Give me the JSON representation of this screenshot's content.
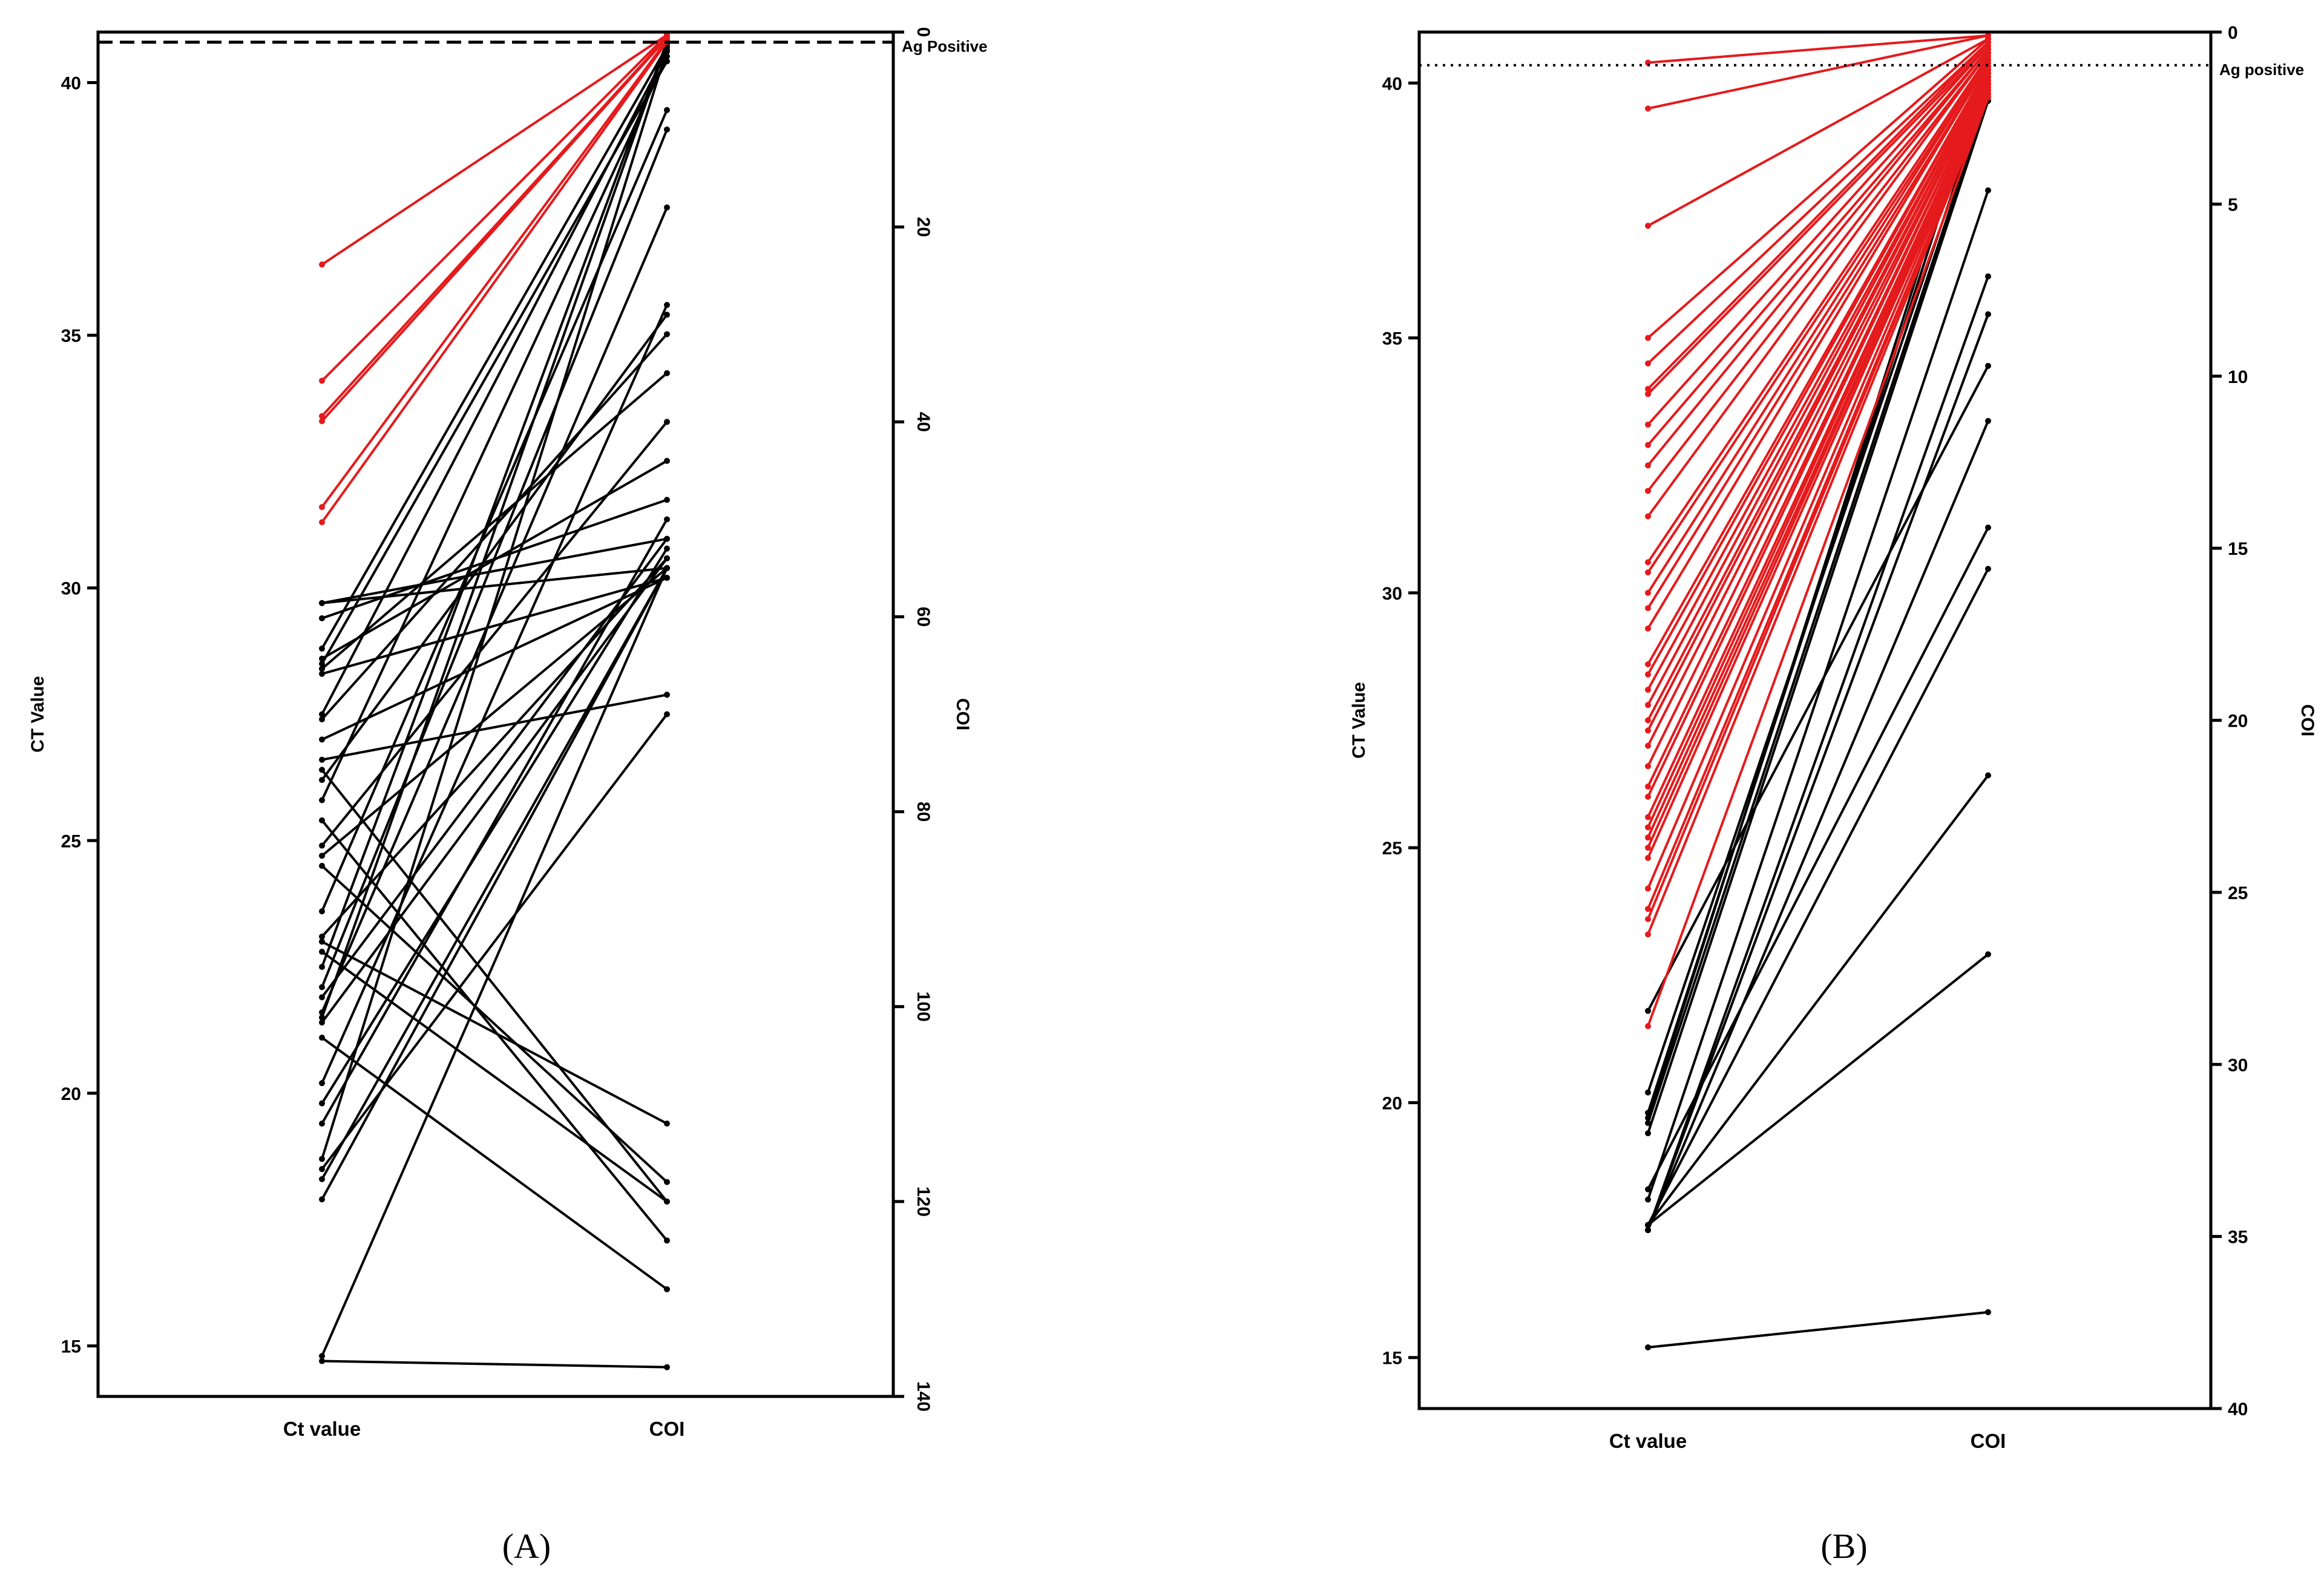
{
  "chart_data": [
    {
      "type": "slope",
      "panel_label": "(A)",
      "categories": [
        "Ct value",
        "COI"
      ],
      "left_axis": {
        "title": "CT Value",
        "ylim": [
          14,
          41
        ],
        "ticks": [
          15,
          20,
          25,
          30,
          35,
          40
        ]
      },
      "right_axis": {
        "title": "COI",
        "ylim": [
          0,
          140
        ],
        "reversed": true,
        "ticks": [
          0,
          20,
          40,
          60,
          80,
          100,
          120,
          140
        ]
      },
      "reference_line": {
        "label": "Ag Positive",
        "ct_value": 40.8,
        "style": "dashed"
      },
      "colors": {
        "antigen_negative": "#000000",
        "antigen_positive": "#e41a1c"
      },
      "pairs": [
        {
          "ct": 36.4,
          "coi": 0.3,
          "red": true
        },
        {
          "ct": 34.1,
          "coi": 0.3,
          "red": true
        },
        {
          "ct": 33.4,
          "coi": 0.5,
          "red": true
        },
        {
          "ct": 33.3,
          "coi": 0.6,
          "red": true
        },
        {
          "ct": 31.6,
          "coi": 0.8,
          "red": true
        },
        {
          "ct": 31.3,
          "coi": 1.0,
          "red": true
        },
        {
          "ct": 29.7,
          "coi": 52
        },
        {
          "ct": 29.7,
          "coi": 55
        },
        {
          "ct": 29.4,
          "coi": 48
        },
        {
          "ct": 28.8,
          "coi": 1.5
        },
        {
          "ct": 28.6,
          "coi": 44
        },
        {
          "ct": 28.5,
          "coi": 3
        },
        {
          "ct": 28.4,
          "coi": 35
        },
        {
          "ct": 28.3,
          "coi": 56
        },
        {
          "ct": 27.5,
          "coi": 2
        },
        {
          "ct": 27.4,
          "coi": 31
        },
        {
          "ct": 27.0,
          "coi": 56
        },
        {
          "ct": 26.6,
          "coi": 68
        },
        {
          "ct": 26.4,
          "coi": 120
        },
        {
          "ct": 26.2,
          "coi": 29
        },
        {
          "ct": 25.8,
          "coi": 2.5
        },
        {
          "ct": 25.4,
          "coi": 124
        },
        {
          "ct": 24.9,
          "coi": 40
        },
        {
          "ct": 24.7,
          "coi": 55
        },
        {
          "ct": 24.5,
          "coi": 118
        },
        {
          "ct": 23.6,
          "coi": 8
        },
        {
          "ct": 23.1,
          "coi": 54
        },
        {
          "ct": 23.0,
          "coi": 112
        },
        {
          "ct": 22.8,
          "coi": 120
        },
        {
          "ct": 22.5,
          "coi": 1
        },
        {
          "ct": 22.1,
          "coi": 10
        },
        {
          "ct": 21.9,
          "coi": 52
        },
        {
          "ct": 21.6,
          "coi": 18
        },
        {
          "ct": 21.5,
          "coi": 1.2
        },
        {
          "ct": 21.4,
          "coi": 54
        },
        {
          "ct": 21.1,
          "coi": 129
        },
        {
          "ct": 20.2,
          "coi": 28
        },
        {
          "ct": 19.8,
          "coi": 53
        },
        {
          "ct": 19.4,
          "coi": 50
        },
        {
          "ct": 18.7,
          "coi": 1.8
        },
        {
          "ct": 18.5,
          "coi": 70
        },
        {
          "ct": 18.3,
          "coi": 55
        },
        {
          "ct": 17.9,
          "coi": 55
        },
        {
          "ct": 14.8,
          "coi": 55
        },
        {
          "ct": 14.7,
          "coi": 137
        }
      ]
    },
    {
      "type": "slope",
      "panel_label": "(B)",
      "categories": [
        "Ct value",
        "COI"
      ],
      "left_axis": {
        "title": "CT Value",
        "ylim": [
          14,
          41
        ],
        "ticks": [
          15,
          20,
          25,
          30,
          35,
          40
        ]
      },
      "right_axis": {
        "title": "COI",
        "ylim": [
          0,
          40
        ],
        "reversed": true,
        "ticks": [
          0,
          5,
          10,
          15,
          20,
          25,
          30,
          35,
          40
        ]
      },
      "reference_line": {
        "label": "Ag positive",
        "ct_value": 40.35,
        "style": "dotted"
      },
      "colors": {
        "antigen_negative": "#000000",
        "antigen_positive": "#e41a1c"
      },
      "pairs": [
        {
          "ct": 40.4,
          "coi": 0.1,
          "red": true
        },
        {
          "ct": 39.5,
          "coi": 0.1,
          "red": true
        },
        {
          "ct": 37.2,
          "coi": 0.2,
          "red": true
        },
        {
          "ct": 35.0,
          "coi": 0.2,
          "red": true
        },
        {
          "ct": 34.5,
          "coi": 0.3,
          "red": true
        },
        {
          "ct": 34.0,
          "coi": 0.3,
          "red": true
        },
        {
          "ct": 33.9,
          "coi": 0.4,
          "red": true
        },
        {
          "ct": 33.3,
          "coi": 0.4,
          "red": true
        },
        {
          "ct": 32.9,
          "coi": 0.5,
          "red": true
        },
        {
          "ct": 32.5,
          "coi": 0.5,
          "red": true
        },
        {
          "ct": 32.0,
          "coi": 0.6,
          "red": true
        },
        {
          "ct": 31.5,
          "coi": 0.6,
          "red": true
        },
        {
          "ct": 30.6,
          "coi": 0.7,
          "red": true
        },
        {
          "ct": 30.4,
          "coi": 0.8,
          "red": true
        },
        {
          "ct": 30.0,
          "coi": 0.8,
          "red": true
        },
        {
          "ct": 29.7,
          "coi": 0.9,
          "red": true
        },
        {
          "ct": 29.3,
          "coi": 0.9,
          "red": true
        },
        {
          "ct": 28.6,
          "coi": 1.0,
          "red": true
        },
        {
          "ct": 28.4,
          "coi": 1.0,
          "red": true
        },
        {
          "ct": 28.1,
          "coi": 1.1,
          "red": true
        },
        {
          "ct": 27.8,
          "coi": 1.1,
          "red": true
        },
        {
          "ct": 27.5,
          "coi": 1.2,
          "red": true
        },
        {
          "ct": 27.3,
          "coi": 1.2,
          "red": true
        },
        {
          "ct": 27.0,
          "coi": 1.3,
          "red": true
        },
        {
          "ct": 26.6,
          "coi": 1.3,
          "red": true
        },
        {
          "ct": 26.2,
          "coi": 1.4,
          "red": true
        },
        {
          "ct": 26.0,
          "coi": 1.4,
          "red": true
        },
        {
          "ct": 25.6,
          "coi": 1.5,
          "red": true
        },
        {
          "ct": 25.4,
          "coi": 1.5,
          "red": true
        },
        {
          "ct": 25.2,
          "coi": 1.6,
          "red": true
        },
        {
          "ct": 25.0,
          "coi": 1.6,
          "red": true
        },
        {
          "ct": 24.8,
          "coi": 1.7,
          "red": true
        },
        {
          "ct": 24.2,
          "coi": 1.7,
          "red": true
        },
        {
          "ct": 23.8,
          "coi": 1.8,
          "red": true
        },
        {
          "ct": 23.6,
          "coi": 1.8,
          "red": true
        },
        {
          "ct": 23.3,
          "coi": 1.9,
          "red": true
        },
        {
          "ct": 21.5,
          "coi": 1.9,
          "red": true
        },
        {
          "ct": 21.8,
          "coi": 9.7
        },
        {
          "ct": 20.2,
          "coi": 1.6
        },
        {
          "ct": 19.8,
          "coi": 1.0
        },
        {
          "ct": 19.7,
          "coi": 0.6
        },
        {
          "ct": 19.6,
          "coi": 1.8
        },
        {
          "ct": 19.4,
          "coi": 2.0
        },
        {
          "ct": 18.3,
          "coi": 14.4
        },
        {
          "ct": 18.1,
          "coi": 4.6
        },
        {
          "ct": 17.6,
          "coi": 26.8
        },
        {
          "ct": 17.6,
          "coi": 15.6
        },
        {
          "ct": 17.5,
          "coi": 11.3
        },
        {
          "ct": 17.5,
          "coi": 8.2
        },
        {
          "ct": 17.5,
          "coi": 7.1
        },
        {
          "ct": 17.6,
          "coi": 21.6
        },
        {
          "ct": 15.2,
          "coi": 37.2
        }
      ]
    }
  ]
}
